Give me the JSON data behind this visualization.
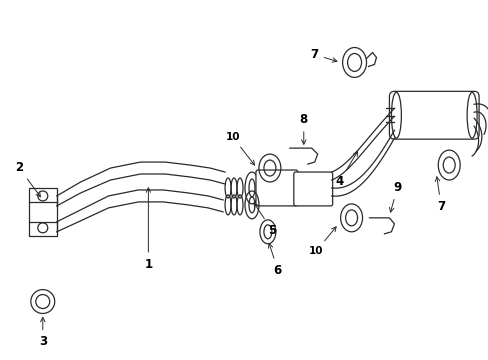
{
  "bg_color": "#ffffff",
  "line_color": "#2a2a2a",
  "label_color": "#000000",
  "lw": 0.9,
  "fs": 8.5
}
